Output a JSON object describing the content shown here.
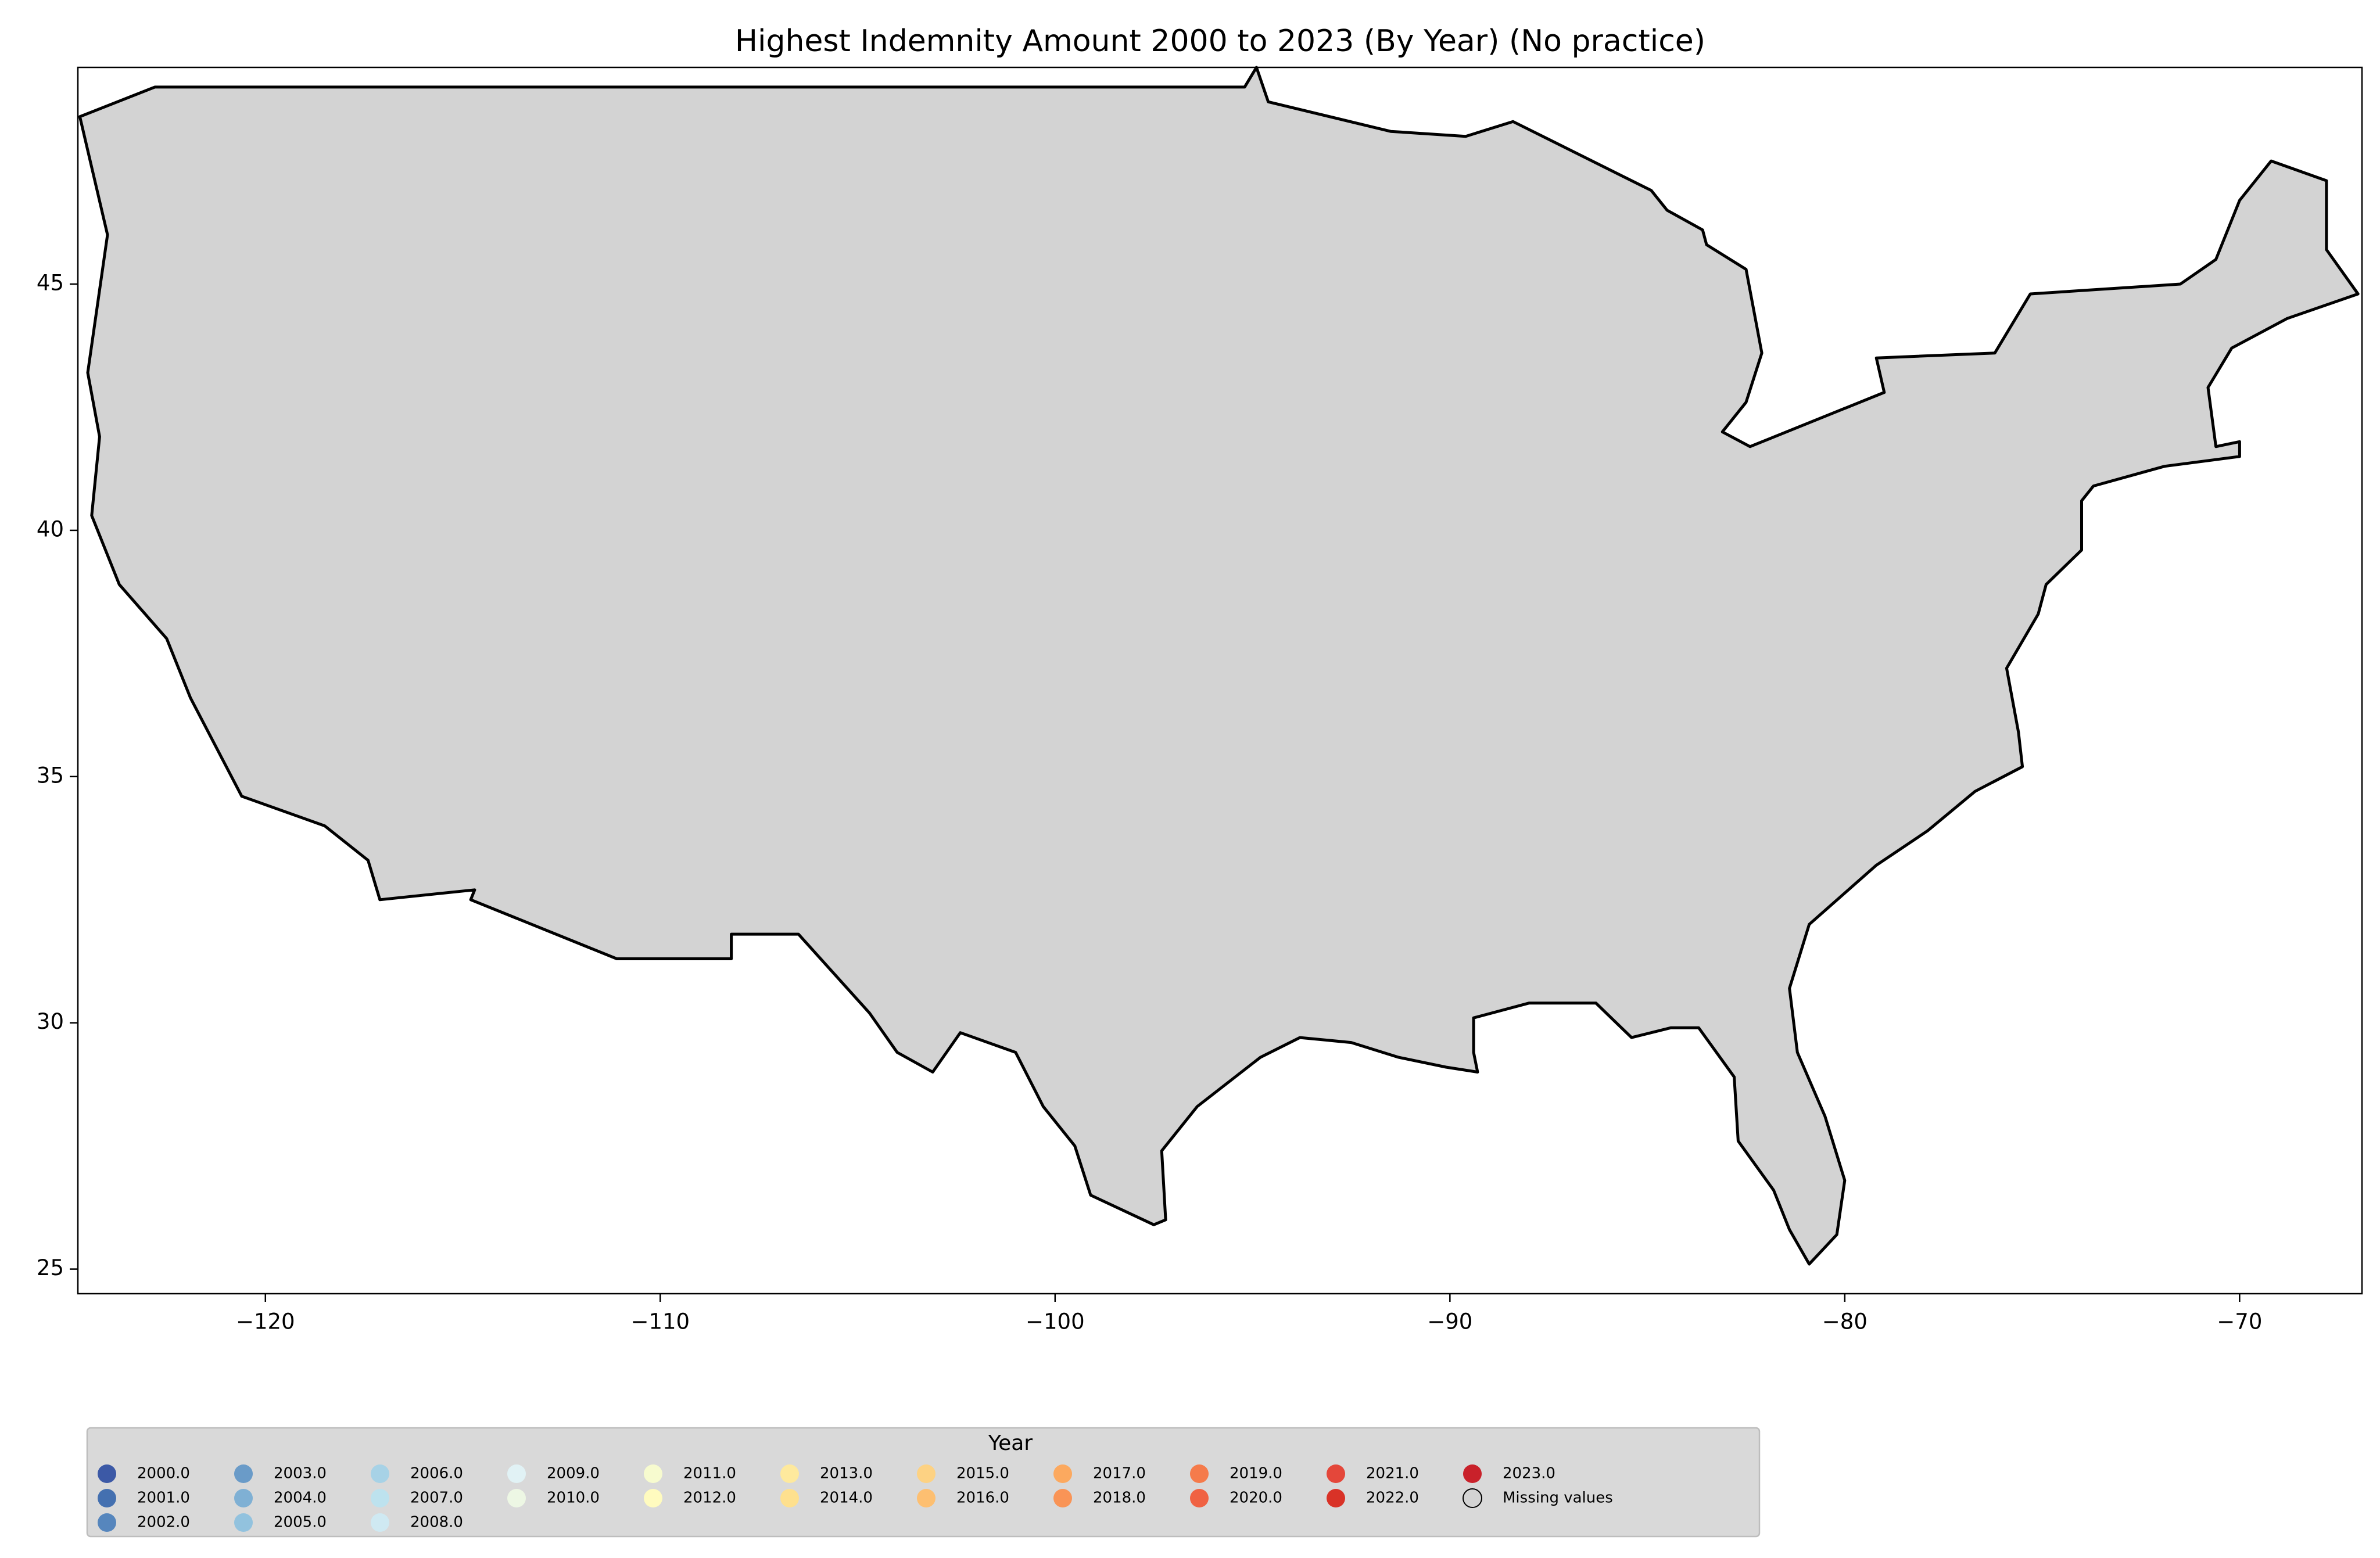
{
  "chart_data": {
    "type": "choropleth",
    "title": "Highest Indemnity Amount 2000 to 2023 (By Year) (No practice)",
    "xlim": [
      -124.75,
      -66.9
    ],
    "ylim": [
      24.5,
      49.4
    ],
    "xticks": [
      {
        "value": -120,
        "label": "−120"
      },
      {
        "value": -110,
        "label": "−110"
      },
      {
        "value": -100,
        "label": "−100"
      },
      {
        "value": -90,
        "label": "−90"
      },
      {
        "value": -80,
        "label": "−80"
      },
      {
        "value": -70,
        "label": "−70"
      }
    ],
    "yticks": [
      25,
      30,
      35,
      40,
      45
    ],
    "legend": {
      "title": "Year",
      "columns": 11,
      "items": [
        {
          "label": "2000.0",
          "color": "#3c59a6"
        },
        {
          "label": "2001.0",
          "color": "#4470b0"
        },
        {
          "label": "2002.0",
          "color": "#5686bd"
        },
        {
          "label": "2003.0",
          "color": "#6a9bc8"
        },
        {
          "label": "2004.0",
          "color": "#7fb0d4"
        },
        {
          "label": "2005.0",
          "color": "#92c2de"
        },
        {
          "label": "2006.0",
          "color": "#a7d2e6"
        },
        {
          "label": "2007.0",
          "color": "#bde2ee"
        },
        {
          "label": "2008.0",
          "color": "#cfe9f2"
        },
        {
          "label": "2009.0",
          "color": "#e1f2f5"
        },
        {
          "label": "2010.0",
          "color": "#edf7e4"
        },
        {
          "label": "2011.0",
          "color": "#f7fbcf"
        },
        {
          "label": "2012.0",
          "color": "#fffbbf"
        },
        {
          "label": "2013.0",
          "color": "#fee99d"
        },
        {
          "label": "2014.0",
          "color": "#fee08e"
        },
        {
          "label": "2015.0",
          "color": "#fdd283"
        },
        {
          "label": "2016.0",
          "color": "#fdbf71"
        },
        {
          "label": "2017.0",
          "color": "#fca95f"
        },
        {
          "label": "2018.0",
          "color": "#f99456"
        },
        {
          "label": "2019.0",
          "color": "#f57b4b"
        },
        {
          "label": "2020.0",
          "color": "#f06243"
        },
        {
          "label": "2021.0",
          "color": "#e4473a"
        },
        {
          "label": "2022.0",
          "color": "#d93227"
        },
        {
          "label": "2023.0",
          "color": "#c9212a"
        },
        {
          "label": "Missing values",
          "color": "#d3d3d3"
        }
      ]
    }
  }
}
